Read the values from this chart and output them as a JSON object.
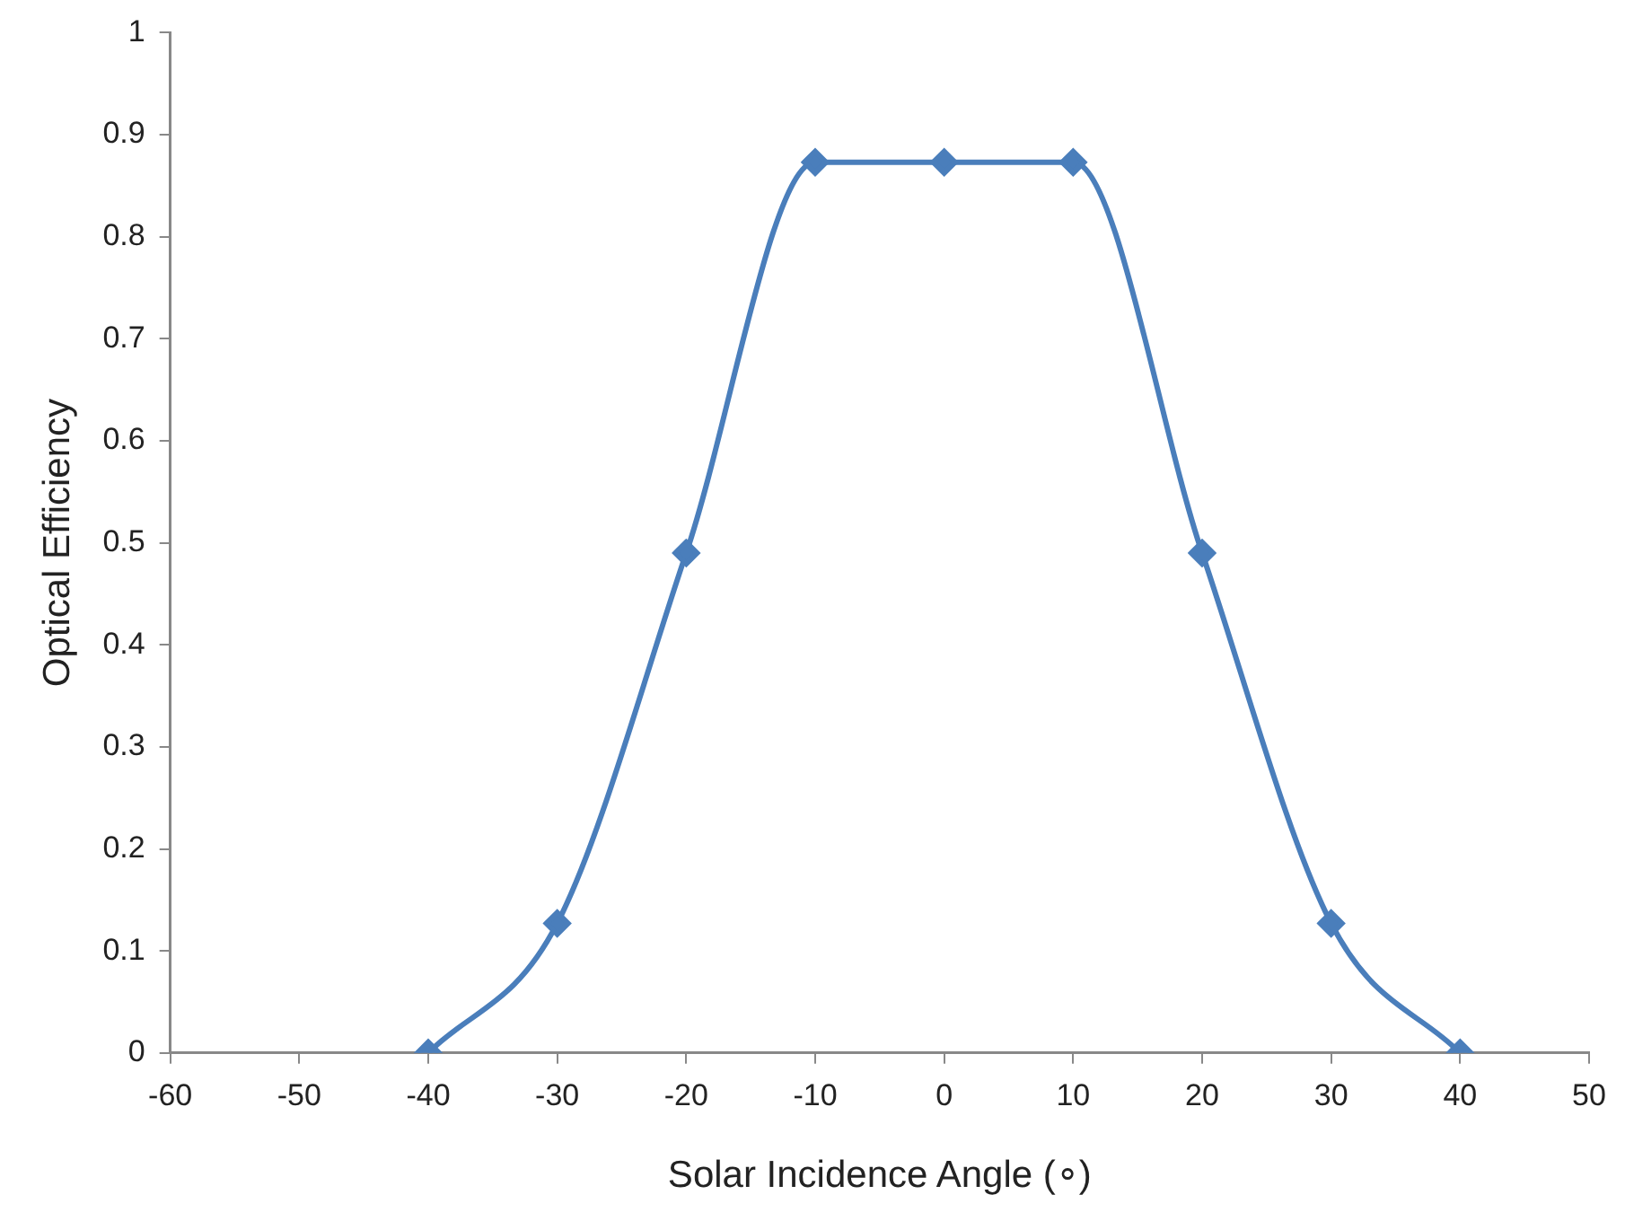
{
  "chart_data": {
    "type": "line",
    "xlabel": "Solar Incidence Angle (∘)",
    "ylabel": "Optical Efficiency",
    "x": [
      -40,
      -30,
      -20,
      -10,
      0,
      10,
      20,
      30,
      40
    ],
    "series": [
      {
        "color": "#4a7ebb",
        "values": [
          0,
          0.127,
          0.49,
          0.873,
          0.873,
          0.873,
          0.49,
          0.127,
          0
        ]
      }
    ],
    "xlim": [
      -60,
      50
    ],
    "xticks": [
      -60,
      -50,
      -40,
      -30,
      -20,
      -10,
      0,
      10,
      20,
      30,
      40,
      50
    ],
    "ylim": [
      0,
      1
    ],
    "yticks": [
      0,
      0.1,
      0.2,
      0.3,
      0.4,
      0.5,
      0.6,
      0.7,
      0.8,
      0.9,
      1
    ],
    "grid": false,
    "legend": false,
    "marker": "diamond",
    "line_style": "solid"
  }
}
